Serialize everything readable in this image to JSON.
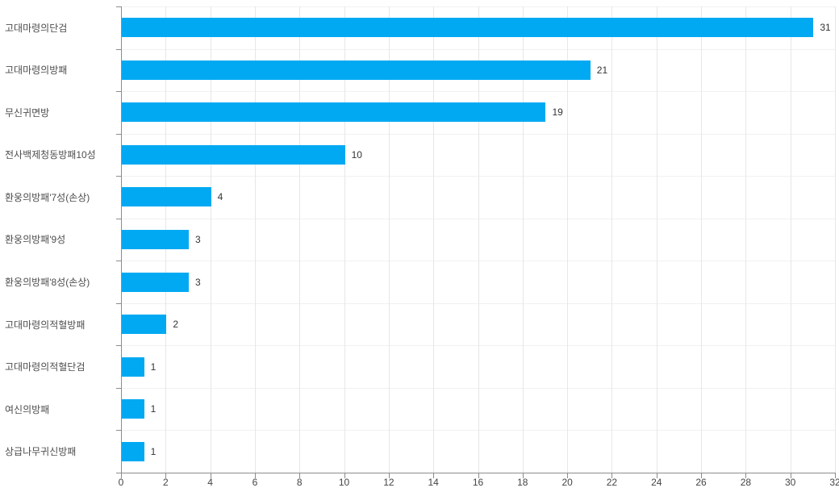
{
  "chart_data": {
    "type": "bar",
    "orientation": "horizontal",
    "title": "",
    "xlabel": "",
    "ylabel": "",
    "categories": [
      "고대마령의단검",
      "고대마령의방패",
      "무신귀면방",
      "전사백제청동방패10성",
      "환웅의방패'7성(손상)",
      "환웅의방패'9성",
      "환웅의방패'8성(손상)",
      "고대마령의적혈방패",
      "고대마령의적혈단검",
      "여신의방패",
      "상급나무귀신방패"
    ],
    "values": [
      31,
      21,
      19,
      10,
      4,
      3,
      3,
      2,
      1,
      1,
      1
    ],
    "xlim": [
      0,
      32
    ],
    "x_ticks": [
      0,
      2,
      4,
      6,
      8,
      10,
      12,
      14,
      16,
      18,
      20,
      22,
      24,
      26,
      28,
      30,
      32
    ],
    "grid": true,
    "legend": "none",
    "colors": {
      "background": "#ffffff",
      "bar": "#00a9f2",
      "axis": "#8c8c8c",
      "grid_vertical": "#e7e7e7",
      "grid_horizontal": "#f1f1f1",
      "category_label": "#4d4d4d",
      "value_label": "#333333",
      "tick_label": "#444444"
    }
  }
}
